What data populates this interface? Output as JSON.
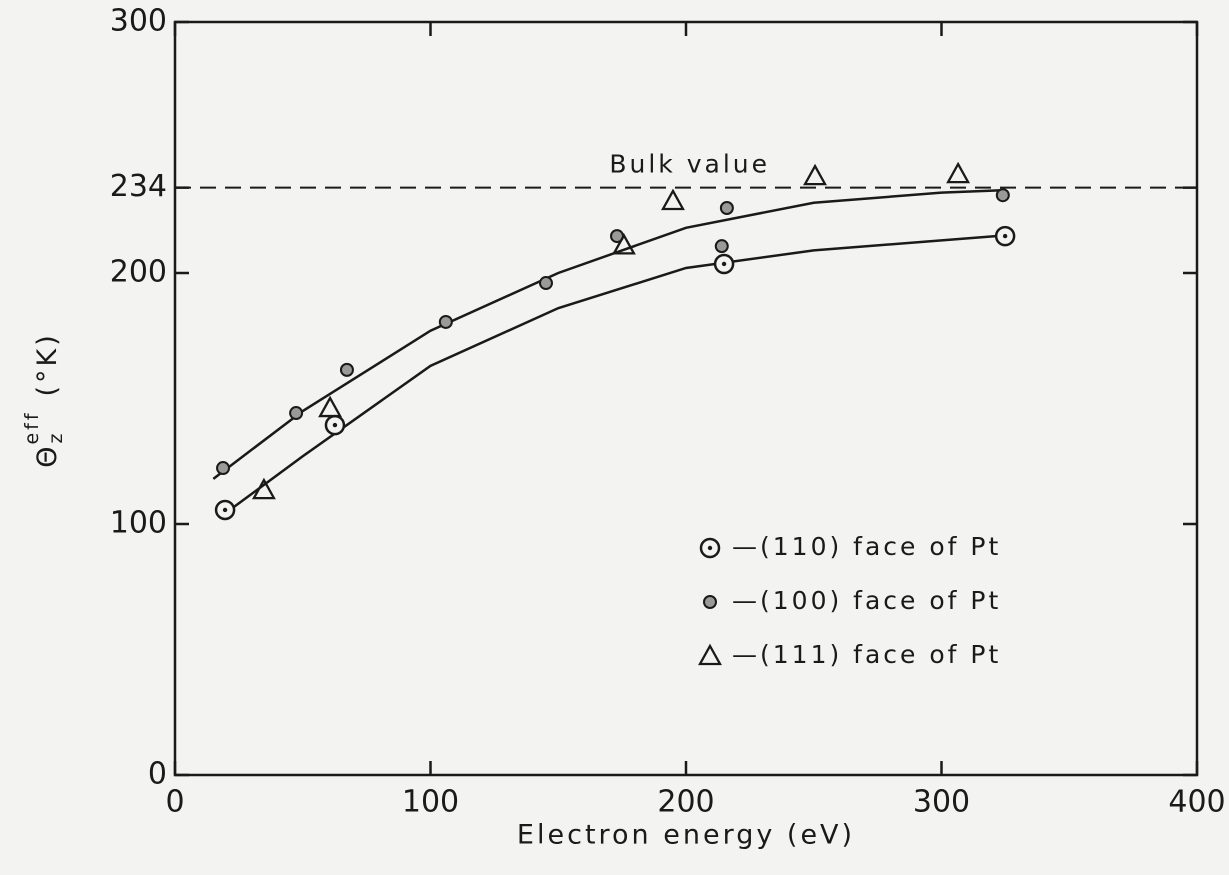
{
  "chart_data": {
    "type": "scatter",
    "xlabel": "Electron energy (eV)",
    "ylabel": {
      "symbol": "Θ",
      "sub": "z",
      "sup": "eff",
      "unit": "(°K)"
    },
    "xlim": [
      0,
      400
    ],
    "xticks": [
      0,
      100,
      200,
      300,
      400
    ],
    "ylim": [
      0,
      300
    ],
    "yticks": [
      0,
      100,
      200,
      234,
      300
    ],
    "legend": "lower right",
    "reference_line": {
      "value": 234,
      "label": "Bulk value",
      "style": "dashed"
    },
    "series": [
      {
        "name": "—(110) face of Pt",
        "marker": "circle-dot",
        "color": "#1a1a1a",
        "x": [
          19.6,
          62.6,
          214.9,
          324.9
        ],
        "values": [
          105.6,
          139.4,
          203.6,
          214.7
        ]
      },
      {
        "name": "—(100) face of Pt",
        "marker": "small-circle",
        "color": "#1a1a1a",
        "x": [
          18.8,
          47.4,
          67.3,
          106,
          145.2,
          173,
          214,
          216,
          324
        ],
        "values": [
          122.3,
          144.2,
          161.4,
          180.5,
          196,
          214.7,
          210.7,
          225.9,
          231
        ]
      },
      {
        "name": "—(111) face of Pt",
        "marker": "triangle",
        "color": "#1a1a1a",
        "x": [
          34.8,
          60.7,
          175.7,
          194.9,
          250.5,
          306.5
        ],
        "values": [
          113.5,
          146.2,
          211,
          228.7,
          238.6,
          239.4
        ]
      }
    ],
    "curves": [
      {
        "color": "#1a1a1a",
        "x": [
          15,
          50,
          100,
          150,
          200,
          250,
          300,
          325
        ],
        "values": [
          118,
          145,
          177,
          200,
          218,
          228,
          232,
          233
        ]
      },
      {
        "color": "#1a1a1a",
        "x": [
          18,
          50,
          100,
          150,
          200,
          250,
          300,
          325
        ],
        "values": [
          103,
          127,
          163,
          186,
          202,
          209,
          213,
          215
        ]
      }
    ]
  }
}
